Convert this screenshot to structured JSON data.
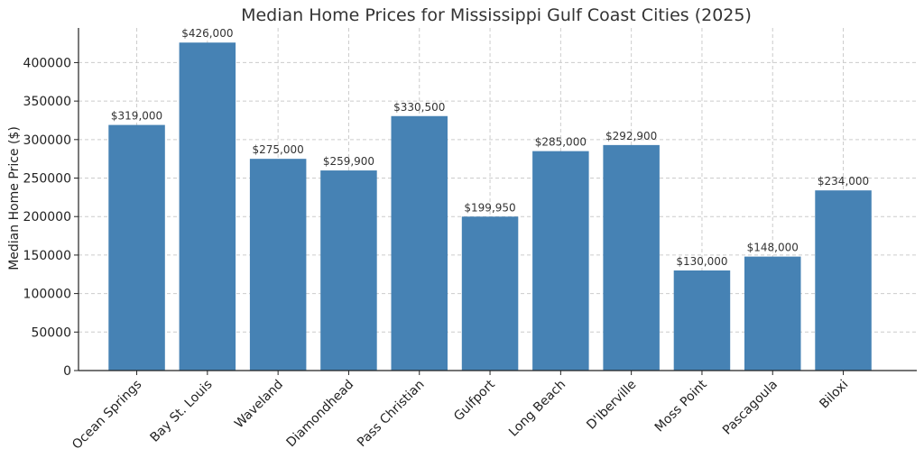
{
  "chart_data": {
    "type": "bar",
    "title": "Median Home Prices for Mississippi Gulf Coast Cities (2025)",
    "xlabel": "",
    "ylabel": "Median Home Price ($)",
    "ylim": [
      0,
      445000
    ],
    "yticks": [
      0,
      50000,
      100000,
      150000,
      200000,
      250000,
      300000,
      350000,
      400000
    ],
    "grid": true,
    "bar_color": "#4682b4",
    "categories": [
      "Ocean Springs",
      "Bay St. Louis",
      "Waveland",
      "Diamondhead",
      "Pass Christian",
      "Gulfport",
      "Long Beach",
      "D'Iberville",
      "Moss Point",
      "Pascagoula",
      "Biloxi"
    ],
    "values": [
      319000,
      426000,
      275000,
      259900,
      330500,
      199950,
      285000,
      292900,
      130000,
      148000,
      234000
    ],
    "data_labels": [
      "$319,000",
      "$426,000",
      "$275,000",
      "$259,900",
      "$330,500",
      "$199,950",
      "$285,000",
      "$292,900",
      "$130,000",
      "$148,000",
      "$234,000"
    ]
  }
}
